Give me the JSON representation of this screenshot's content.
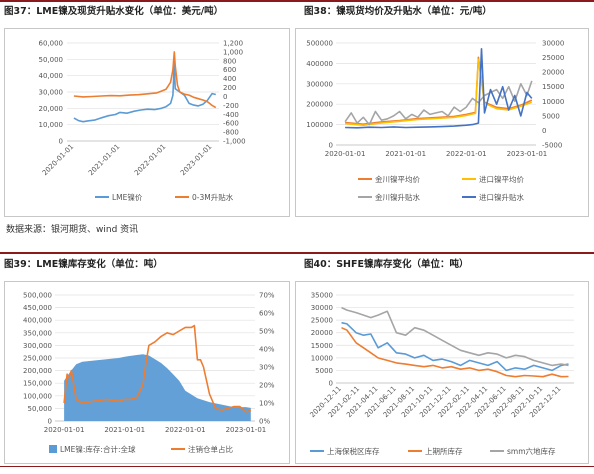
{
  "figures": [
    {
      "title": "图37：LME镍及现货升贴水变化（单位：美元/吨）"
    },
    {
      "title": "图38：镍现货均价及升贴水（单位：元/吨）"
    },
    {
      "title": "图39：LME镍库存变化（单位：吨）"
    },
    {
      "title": "图40：SHFE镍库存变化（单位：吨）"
    }
  ],
  "source_text": "数据来源：银河期货、wind 资讯",
  "chart_data": [
    {
      "type": "line",
      "x_ticks": [
        "2020-01-01",
        "2021-01-01",
        "2022-01-01",
        "2023-01-01"
      ],
      "yleft_ticks": [
        "0",
        "10,000",
        "20,000",
        "30,000",
        "40,000",
        "50,000",
        "60,000"
      ],
      "yright_ticks": [
        "-1,000",
        "-800",
        "-600",
        "-400",
        "-200",
        "0",
        "200",
        "400",
        "600",
        "800",
        "1,000",
        "1,200"
      ],
      "ylim_left": [
        0,
        60000
      ],
      "ylim_right": [
        -1000,
        1200
      ],
      "series": [
        {
          "name": "LME镍价",
          "axis": "left",
          "color": "#5b9bd5",
          "x": [
            2020.0,
            2020.1,
            2020.2,
            2020.3,
            2020.45,
            2020.6,
            2020.75,
            2020.9,
            2021.0,
            2021.15,
            2021.3,
            2021.45,
            2021.6,
            2021.75,
            2021.9,
            2022.0,
            2022.1,
            2022.15,
            2022.18,
            2022.2,
            2022.25,
            2022.3,
            2022.4,
            2022.5,
            2022.6,
            2022.7,
            2022.8,
            2022.9,
            2023.0,
            2023.08
          ],
          "y": [
            14000,
            12500,
            11800,
            12300,
            12800,
            14200,
            15500,
            16200,
            17500,
            17000,
            18200,
            19000,
            19500,
            19200,
            20000,
            21000,
            23000,
            28000,
            48000,
            32000,
            31000,
            30000,
            28000,
            23000,
            22000,
            21500,
            22500,
            25000,
            29000,
            28500
          ]
        },
        {
          "name": "0-3M升贴水",
          "axis": "right",
          "color": "#ed7d31",
          "x": [
            2020.0,
            2020.2,
            2020.4,
            2020.6,
            2020.8,
            2021.0,
            2021.2,
            2021.4,
            2021.6,
            2021.8,
            2021.9,
            2022.0,
            2022.05,
            2022.1,
            2022.15,
            2022.18,
            2022.2,
            2022.25,
            2022.3,
            2022.4,
            2022.5,
            2022.6,
            2022.7,
            2022.8,
            2022.9,
            2023.0,
            2023.08
          ],
          "y": [
            10,
            -10,
            0,
            10,
            20,
            15,
            30,
            40,
            60,
            80,
            120,
            160,
            240,
            320,
            600,
            1000,
            700,
            250,
            100,
            50,
            30,
            -20,
            -50,
            -80,
            -120,
            -200,
            -250
          ]
        }
      ]
    },
    {
      "type": "line",
      "x_ticks": [
        "2020-01-01",
        "2021-01-01",
        "2022-01-01",
        "2023-01-01"
      ],
      "yleft_ticks": [
        "0",
        "100000",
        "200000",
        "300000",
        "400000",
        "500000"
      ],
      "yright_ticks": [
        "-5000",
        "0",
        "5000",
        "10000",
        "15000",
        "20000",
        "25000",
        "30000"
      ],
      "ylim_left": [
        0,
        500000
      ],
      "ylim_right": [
        -5000,
        30000
      ],
      "series": [
        {
          "name": "金川镍平均价",
          "axis": "left",
          "color": "#ed7d31",
          "x": [
            2020.0,
            2020.3,
            2020.6,
            2020.9,
            2021.2,
            2021.5,
            2021.8,
            2022.0,
            2022.15,
            2022.2,
            2022.3,
            2022.5,
            2022.7,
            2022.9,
            2023.08
          ],
          "y": [
            110000,
            102000,
            113000,
            120000,
            130000,
            135000,
            140000,
            150000,
            160000,
            430000,
            210000,
            185000,
            178000,
            195000,
            220000
          ]
        },
        {
          "name": "进口镍平均价",
          "axis": "left",
          "color": "#ffc000",
          "x": [
            2020.0,
            2020.3,
            2020.6,
            2020.9,
            2021.2,
            2021.5,
            2021.8,
            2022.0,
            2022.15,
            2022.2,
            2022.3,
            2022.5,
            2022.7,
            2022.9,
            2023.08
          ],
          "y": [
            105000,
            97000,
            108000,
            116000,
            125000,
            130000,
            136000,
            145000,
            155000,
            420000,
            205000,
            178000,
            172000,
            190000,
            210000
          ]
        },
        {
          "name": "金川镍升贴水",
          "axis": "right",
          "color": "#a5a5a5",
          "x": [
            2020.0,
            2020.1,
            2020.2,
            2020.3,
            2020.4,
            2020.5,
            2020.6,
            2020.7,
            2020.8,
            2020.9,
            2021.0,
            2021.1,
            2021.2,
            2021.3,
            2021.4,
            2021.5,
            2021.6,
            2021.7,
            2021.8,
            2021.9,
            2022.0,
            2022.1,
            2022.2,
            2022.3,
            2022.4,
            2022.5,
            2022.6,
            2022.7,
            2022.8,
            2022.9,
            2023.0,
            2023.08
          ],
          "y": [
            3000,
            6000,
            2500,
            4500,
            2000,
            6500,
            3500,
            4000,
            5000,
            6500,
            4000,
            5500,
            4500,
            7000,
            5500,
            6000,
            6500,
            5000,
            8000,
            6500,
            8000,
            11000,
            9500,
            12000,
            13000,
            14000,
            11000,
            15000,
            10000,
            16000,
            12000,
            17000
          ]
        },
        {
          "name": "进口镍升贴水",
          "axis": "right",
          "color": "#4472c4",
          "x": [
            2020.0,
            2020.2,
            2020.4,
            2020.6,
            2020.8,
            2021.0,
            2021.2,
            2021.4,
            2021.6,
            2021.8,
            2022.0,
            2022.1,
            2022.2,
            2022.25,
            2022.3,
            2022.4,
            2022.5,
            2022.6,
            2022.7,
            2022.8,
            2022.9,
            2023.0,
            2023.08
          ],
          "y": [
            1000,
            900,
            1100,
            1000,
            1200,
            1000,
            1100,
            1200,
            1300,
            1500,
            1800,
            2000,
            2500,
            28000,
            6000,
            14000,
            9000,
            15000,
            7000,
            12000,
            5000,
            13000,
            11000
          ]
        }
      ]
    },
    {
      "type": "area",
      "x_ticks": [
        "2020-01-01",
        "2021-01-01",
        "2022-01-01",
        "2023-01-01"
      ],
      "yleft_ticks": [
        "0",
        "50,000",
        "100,000",
        "150,000",
        "200,000",
        "250,000",
        "300,000",
        "350,000",
        "400,000",
        "450,000",
        "500,000"
      ],
      "yright_ticks": [
        "0%",
        "10%",
        "20%",
        "30%",
        "40%",
        "50%",
        "60%",
        "70%"
      ],
      "ylim_left": [
        0,
        500000
      ],
      "ylim_right": [
        0,
        70
      ],
      "series": [
        {
          "name": "LME镍:库存:合计:全球",
          "axis": "left",
          "color": "#5b9bd5",
          "x": [
            2020.0,
            2020.1,
            2020.2,
            2020.3,
            2020.5,
            2020.7,
            2020.9,
            2021.0,
            2021.2,
            2021.3,
            2021.4,
            2021.5,
            2021.6,
            2021.7,
            2021.8,
            2021.9,
            2022.0,
            2022.2,
            2022.4,
            2022.6,
            2022.8,
            2023.0,
            2023.08
          ],
          "y": [
            160000,
            195000,
            225000,
            235000,
            240000,
            245000,
            250000,
            255000,
            262000,
            265000,
            260000,
            245000,
            230000,
            210000,
            185000,
            160000,
            120000,
            90000,
            75000,
            65000,
            55000,
            55000,
            52000
          ]
        },
        {
          "name": "注销仓单占比",
          "axis": "right",
          "color": "#ed7d31",
          "x": [
            2020.0,
            2020.05,
            2020.08,
            2020.12,
            2020.2,
            2020.3,
            2020.5,
            2020.7,
            2020.9,
            2021.0,
            2021.1,
            2021.2,
            2021.3,
            2021.35,
            2021.4,
            2021.5,
            2021.6,
            2021.7,
            2021.8,
            2021.9,
            2022.0,
            2022.1,
            2022.15,
            2022.2,
            2022.25,
            2022.3,
            2022.4,
            2022.5,
            2022.6,
            2022.7,
            2022.8,
            2022.9,
            2023.0,
            2023.08
          ],
          "y": [
            10,
            26,
            24,
            28,
            12,
            10,
            11,
            12,
            11,
            12,
            12,
            13,
            20,
            32,
            42,
            44,
            47,
            49,
            48,
            50,
            52,
            52,
            53,
            34,
            34,
            30,
            15,
            7,
            6,
            7,
            8,
            8,
            5,
            6
          ]
        }
      ]
    },
    {
      "type": "line",
      "x_ticks": [
        "2020-12-11",
        "2021-02-11",
        "2021-04-11",
        "2021-06-11",
        "2021-08-11",
        "2021-10-11",
        "2021-12-11",
        "2022-02-11",
        "2022-04-11",
        "2022-06-11",
        "2022-08-11",
        "2022-10-11",
        "2022-12-11"
      ],
      "yleft_ticks": [
        "0",
        "5000",
        "10000",
        "15000",
        "20000",
        "25000",
        "30000",
        "35000"
      ],
      "ylim_left": [
        0,
        35000
      ],
      "series": [
        {
          "name": "上海保税区库存",
          "axis": "left",
          "color": "#5b9bd5",
          "x": [
            0,
            0.3,
            0.8,
            1.2,
            1.6,
            2.0,
            2.5,
            3.0,
            3.5,
            4.0,
            4.5,
            5.0,
            5.5,
            6.0,
            6.5,
            7.0,
            7.5,
            8.0,
            8.5,
            9.0,
            9.5,
            10.0,
            10.5,
            11.0,
            11.5,
            12.0,
            12.4
          ],
          "y": [
            24000,
            23500,
            20000,
            19000,
            19500,
            14000,
            16000,
            12000,
            11500,
            10000,
            11000,
            9000,
            9500,
            8500,
            7000,
            9000,
            8000,
            7000,
            8500,
            5000,
            6000,
            5500,
            7000,
            6000,
            5000,
            7000,
            7500
          ]
        },
        {
          "name": "上期所库存",
          "axis": "left",
          "color": "#ed7d31",
          "x": [
            0,
            0.3,
            0.8,
            1.2,
            1.6,
            2.0,
            2.5,
            3.0,
            3.5,
            4.0,
            4.5,
            5.0,
            5.5,
            6.0,
            6.5,
            7.0,
            7.5,
            8.0,
            8.5,
            9.0,
            9.5,
            10.0,
            10.5,
            11.0,
            11.5,
            12.0,
            12.4
          ],
          "y": [
            22000,
            21000,
            16000,
            14000,
            12000,
            10000,
            9000,
            8000,
            7500,
            7000,
            6500,
            7000,
            6000,
            6500,
            5500,
            6000,
            5000,
            5500,
            4500,
            3000,
            2500,
            3000,
            2800,
            2500,
            3500,
            2500,
            2600
          ]
        },
        {
          "name": "smm六地库存",
          "axis": "left",
          "color": "#a5a5a5",
          "x": [
            0,
            0.3,
            0.8,
            1.2,
            1.6,
            2.0,
            2.5,
            3.0,
            3.5,
            4.0,
            4.5,
            5.0,
            5.5,
            6.0,
            6.5,
            7.0,
            7.5,
            8.0,
            8.5,
            9.0,
            9.5,
            10.0,
            10.5,
            11.0,
            11.5,
            12.0,
            12.4
          ],
          "y": [
            30000,
            29000,
            28000,
            27000,
            26000,
            27000,
            28500,
            20000,
            19000,
            22000,
            21000,
            19000,
            17000,
            15000,
            13000,
            12000,
            11000,
            12000,
            11500,
            10000,
            11000,
            10500,
            9000,
            8000,
            7000,
            7500,
            7000
          ]
        }
      ]
    }
  ]
}
